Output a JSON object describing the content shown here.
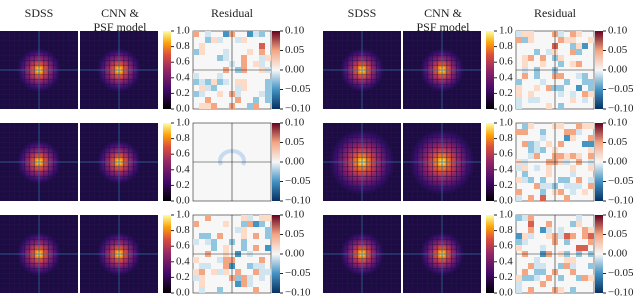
{
  "headers": {
    "sdss": "SDSS",
    "model": [
      "CNN &",
      "PSF model"
    ],
    "residual": "Residual"
  },
  "colorbars": {
    "intensity": {
      "ticks": [
        {
          "value": 1.0,
          "label": "1.0"
        },
        {
          "value": 0.8,
          "label": "0.8"
        },
        {
          "value": 0.6,
          "label": "0.6"
        },
        {
          "value": 0.4,
          "label": "0.4"
        },
        {
          "value": 0.2,
          "label": "0.2"
        },
        {
          "value": 0.0,
          "label": "0.0"
        }
      ]
    },
    "residual": {
      "ticks": [
        {
          "value": 0.1,
          "label": "0.10"
        },
        {
          "value": 0.05,
          "label": "0.05"
        },
        {
          "value": 0,
          "label": "0.00"
        },
        {
          "value": -0.05,
          "label": "−0.05"
        },
        {
          "value": -0.1,
          "label": "−0.10"
        }
      ]
    }
  }
}
